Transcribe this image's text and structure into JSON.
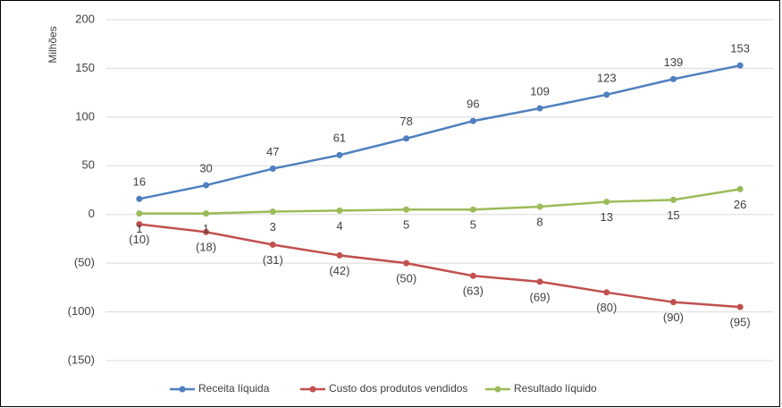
{
  "chart_data": {
    "type": "line",
    "y_label": "Milhões",
    "categories": [
      null,
      null,
      null,
      null,
      null,
      null,
      null,
      null,
      null,
      null
    ],
    "series": [
      {
        "name": "Receita líquida",
        "color": "#4f7fbf",
        "values": [
          16,
          30,
          47,
          61,
          78,
          96,
          109,
          123,
          139,
          153
        ]
      },
      {
        "name": "Custo dos produtos vendidos",
        "color": "#c0504d",
        "values": [
          -10,
          -18,
          -31,
          -42,
          -50,
          -63,
          -69,
          -80,
          -90,
          -95
        ],
        "value_labels": [
          "(10)",
          "(18)",
          "(31)",
          "(42)",
          "(50)",
          "(63)",
          "(69)",
          "(80)",
          "(90)",
          "(95)"
        ]
      },
      {
        "name": "Resultado líquido",
        "color": "#9bbb59",
        "values": [
          1,
          1,
          3,
          4,
          5,
          5,
          8,
          13,
          15,
          26
        ]
      }
    ],
    "ylim": [
      -150,
      200
    ],
    "yticks": [
      200,
      150,
      100,
      50,
      0,
      {
        "value": -50,
        "label": "(50)"
      },
      {
        "value": -100,
        "label": "(100)"
      },
      {
        "value": -150,
        "label": "(150)"
      }
    ],
    "grid": true,
    "legend": "bottom"
  }
}
